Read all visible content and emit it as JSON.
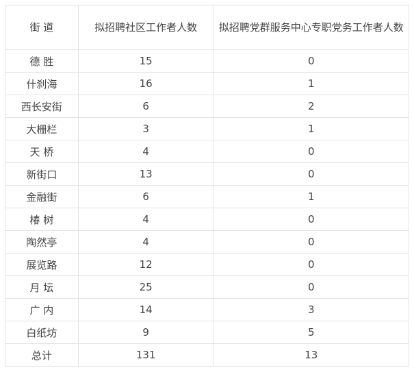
{
  "table": {
    "headers": [
      "街 道",
      "拟招聘社区工作者人数",
      "拟招聘党群服务中心专职党务工作者人数"
    ],
    "rows": [
      [
        "德 胜",
        "15",
        "0"
      ],
      [
        "什刹海",
        "16",
        "1"
      ],
      [
        "西长安街",
        "6",
        "2"
      ],
      [
        "大栅栏",
        "3",
        "1"
      ],
      [
        "天 桥",
        "4",
        "0"
      ],
      [
        "新街口",
        "13",
        "0"
      ],
      [
        "金融街",
        "6",
        "1"
      ],
      [
        "椿 树",
        "4",
        "0"
      ],
      [
        "陶然亭",
        "4",
        "0"
      ],
      [
        "展览路",
        "12",
        "0"
      ],
      [
        "月 坛",
        "25",
        "0"
      ],
      [
        "广 内",
        "14",
        "3"
      ],
      [
        "白纸坊",
        "9",
        "5"
      ],
      [
        "总计",
        "131",
        "13"
      ]
    ]
  }
}
